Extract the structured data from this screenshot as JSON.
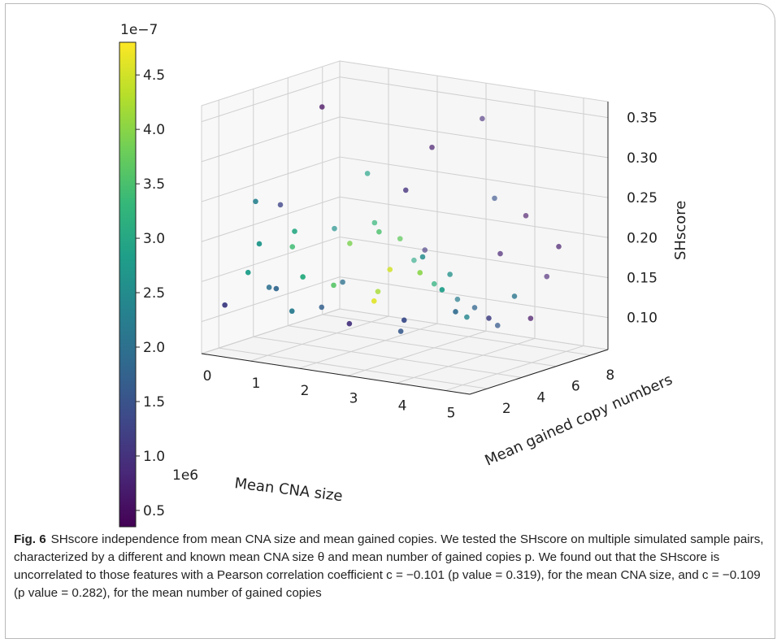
{
  "figure": {
    "label": "Fig. 6",
    "caption": "SHscore independence from mean CNA size and mean gained copies. We tested the SHscore on multiple simulated sample pairs, characterized by a different and known mean CNA size θ and mean number of gained copies p. We found out that the SHscore is uncorrelated to those features with a Pearson correlation coefficient c = −0.101 (p value =  0.319), for the mean CNA size, and c = −0.109 (p value = 0.282), for the mean number of gained copies"
  },
  "chart_data": {
    "type": "scatter",
    "projection": "3d",
    "title": "",
    "xlabel": "Mean CNA size",
    "ylabel": "Mean gained copy numbers",
    "zlabel": "SHscore",
    "x_offset_label": "1e6",
    "xlim": [
      0,
      5.5
    ],
    "ylim": [
      1,
      9
    ],
    "zlim": [
      0.06,
      0.37
    ],
    "x_ticks": [
      "0",
      "1",
      "2",
      "3",
      "4",
      "5"
    ],
    "y_ticks": [
      "2",
      "4",
      "6",
      "8"
    ],
    "z_ticks": [
      "0.10",
      "0.15",
      "0.20",
      "0.25",
      "0.30",
      "0.35"
    ],
    "grid": true,
    "colorbar": {
      "colormap": "viridis",
      "offset_label": "1e−7",
      "range": [
        0.35,
        4.8
      ],
      "ticks": [
        "0.5",
        "1.0",
        "1.5",
        "2.0",
        "2.5",
        "3.0",
        "3.5",
        "4.0",
        "4.5"
      ],
      "colors": [
        "#440154",
        "#482878",
        "#3e4989",
        "#31688e",
        "#26828e",
        "#1f9e89",
        "#35b779",
        "#6ece58",
        "#b5de2b",
        "#fde725"
      ]
    },
    "points": [
      {
        "x": 0.3,
        "y": 1.5,
        "z": 0.12,
        "c": 1.2
      },
      {
        "x": 0.6,
        "y": 2.0,
        "z": 0.16,
        "c": 2.8
      },
      {
        "x": 0.5,
        "y": 3.5,
        "z": 0.13,
        "c": 2.0
      },
      {
        "x": 1.0,
        "y": 2.5,
        "z": 0.14,
        "c": 1.8
      },
      {
        "x": 0.8,
        "y": 4.0,
        "z": 0.18,
        "c": 3.4
      },
      {
        "x": 1.2,
        "y": 3.0,
        "z": 0.21,
        "c": 3.0
      },
      {
        "x": 1.5,
        "y": 2.0,
        "z": 0.12,
        "c": 2.2
      },
      {
        "x": 1.8,
        "y": 4.5,
        "z": 0.19,
        "c": 3.9
      },
      {
        "x": 2.0,
        "y": 3.0,
        "z": 0.15,
        "c": 3.6
      },
      {
        "x": 2.2,
        "y": 5.0,
        "z": 0.13,
        "c": 4.2
      },
      {
        "x": 2.5,
        "y": 2.5,
        "z": 0.11,
        "c": 1.0
      },
      {
        "x": 2.8,
        "y": 4.0,
        "z": 0.17,
        "c": 4.5
      },
      {
        "x": 3.0,
        "y": 6.0,
        "z": 0.14,
        "c": 3.2
      },
      {
        "x": 3.2,
        "y": 3.5,
        "z": 0.1,
        "c": 1.6
      },
      {
        "x": 3.5,
        "y": 5.5,
        "z": 0.16,
        "c": 2.6
      },
      {
        "x": 3.8,
        "y": 2.0,
        "z": 0.13,
        "c": 1.4
      },
      {
        "x": 4.0,
        "y": 7.0,
        "z": 0.18,
        "c": 0.8
      },
      {
        "x": 4.2,
        "y": 4.5,
        "z": 0.12,
        "c": 2.4
      },
      {
        "x": 4.5,
        "y": 3.0,
        "z": 0.14,
        "c": 1.9
      },
      {
        "x": 4.8,
        "y": 6.5,
        "z": 0.11,
        "c": 0.6
      },
      {
        "x": 5.0,
        "y": 5.0,
        "z": 0.15,
        "c": 2.1
      },
      {
        "x": 0.2,
        "y": 5.0,
        "z": 0.22,
        "c": 1.3
      },
      {
        "x": 0.7,
        "y": 6.0,
        "z": 0.34,
        "c": 0.5
      },
      {
        "x": 1.1,
        "y": 7.5,
        "z": 0.25,
        "c": 2.9
      },
      {
        "x": 1.6,
        "y": 6.5,
        "z": 0.2,
        "c": 3.3
      },
      {
        "x": 2.1,
        "y": 8.0,
        "z": 0.16,
        "c": 1.1
      },
      {
        "x": 2.6,
        "y": 7.0,
        "z": 0.3,
        "c": 0.7
      },
      {
        "x": 3.1,
        "y": 8.5,
        "z": 0.33,
        "c": 0.9
      },
      {
        "x": 3.6,
        "y": 7.8,
        "z": 0.24,
        "c": 1.5
      },
      {
        "x": 4.1,
        "y": 8.2,
        "z": 0.22,
        "c": 0.6
      },
      {
        "x": 4.6,
        "y": 8.0,
        "z": 0.15,
        "c": 0.8
      },
      {
        "x": 5.2,
        "y": 7.0,
        "z": 0.2,
        "c": 0.7
      },
      {
        "x": 0.4,
        "y": 3.0,
        "z": 0.24,
        "c": 2.3
      },
      {
        "x": 0.9,
        "y": 1.8,
        "z": 0.2,
        "c": 2.7
      },
      {
        "x": 1.4,
        "y": 4.0,
        "z": 0.11,
        "c": 1.7
      },
      {
        "x": 1.9,
        "y": 1.5,
        "z": 0.17,
        "c": 3.1
      },
      {
        "x": 2.4,
        "y": 4.5,
        "z": 0.21,
        "c": 3.5
      },
      {
        "x": 2.9,
        "y": 2.8,
        "z": 0.14,
        "c": 4.6
      },
      {
        "x": 3.4,
        "y": 4.2,
        "z": 0.19,
        "c": 2.5
      },
      {
        "x": 3.9,
        "y": 5.8,
        "z": 0.12,
        "c": 1.8
      },
      {
        "x": 4.4,
        "y": 2.5,
        "z": 0.17,
        "c": 2.8
      },
      {
        "x": 4.9,
        "y": 3.8,
        "z": 0.13,
        "c": 1.2
      },
      {
        "x": 1.3,
        "y": 5.5,
        "z": 0.13,
        "c": 2.0
      },
      {
        "x": 2.3,
        "y": 6.0,
        "z": 0.19,
        "c": 3.7
      },
      {
        "x": 3.3,
        "y": 6.5,
        "z": 0.12,
        "c": 2.2
      },
      {
        "x": 4.3,
        "y": 6.0,
        "z": 0.1,
        "c": 1.6
      },
      {
        "x": 0.6,
        "y": 7.0,
        "z": 0.18,
        "c": 2.6
      },
      {
        "x": 1.7,
        "y": 8.5,
        "z": 0.14,
        "c": 3.0
      },
      {
        "x": 2.7,
        "y": 5.2,
        "z": 0.26,
        "c": 1.0
      },
      {
        "x": 3.7,
        "y": 3.2,
        "z": 0.18,
        "c": 4.0
      }
    ]
  }
}
